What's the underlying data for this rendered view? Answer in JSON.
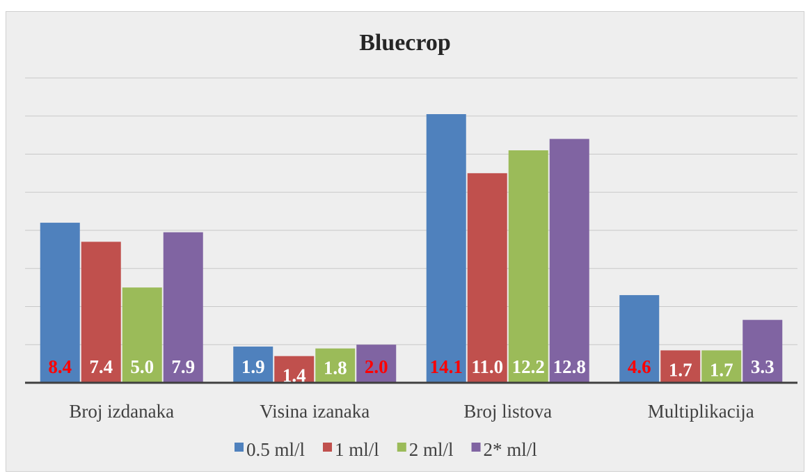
{
  "chart_data": {
    "type": "bar",
    "title": "Bluecrop",
    "categories": [
      "Broj izdanaka",
      "Visina izanaka",
      "Broj listova",
      "Multiplikacija"
    ],
    "series": [
      {
        "name": "0.5 ml/l",
        "color": "#4f81bd",
        "values": [
          8.4,
          1.9,
          14.1,
          4.6
        ]
      },
      {
        "name": "1 ml/l",
        "color": "#c0504d",
        "values": [
          7.4,
          1.4,
          11.0,
          1.7
        ]
      },
      {
        "name": "2 ml/l",
        "color": "#9bbb59",
        "values": [
          5.0,
          1.8,
          12.2,
          1.7
        ]
      },
      {
        "name": "2* ml/l",
        "color": "#8064a2",
        "values": [
          7.9,
          2.0,
          12.8,
          3.3
        ]
      }
    ],
    "data_labels": [
      [
        "8.4",
        "7.4",
        "5.0",
        "7.9"
      ],
      [
        "1.9",
        "1.4",
        "1.8",
        "2.0"
      ],
      [
        "14.1",
        "11.0",
        "12.2",
        "12.8"
      ],
      [
        "4.6",
        "1.7",
        "1.7",
        "3.3"
      ]
    ],
    "highlight_labels": [
      [
        0,
        0
      ],
      [
        1,
        3
      ],
      [
        2,
        0
      ],
      [
        3,
        0
      ]
    ],
    "highlight_color": "#ff0000",
    "label_color": "#ffffff",
    "ylim": [
      0,
      16
    ],
    "grid": true,
    "legend_position": "bottom"
  }
}
